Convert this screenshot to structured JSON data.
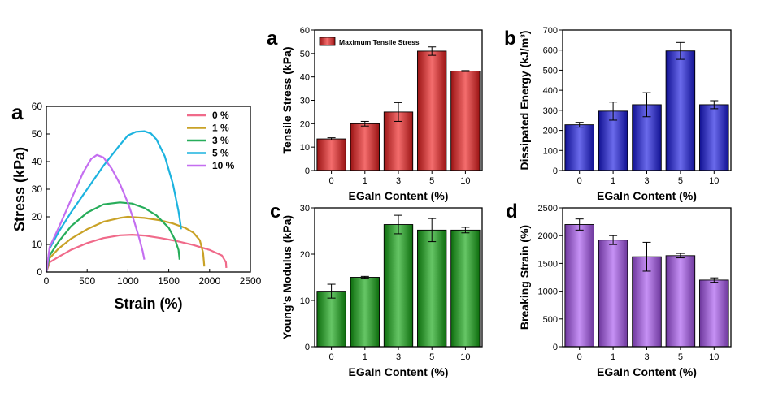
{
  "chart_data": [
    {
      "id": "stress_strain",
      "type": "line",
      "panel_label": "a",
      "xlabel": "Strain (%)",
      "ylabel": "Stress (kPa)",
      "xlim": [
        0,
        2500
      ],
      "ylim": [
        0,
        60
      ],
      "xticks": [
        0,
        500,
        1000,
        1500,
        2000,
        2500
      ],
      "yticks": [
        0,
        10,
        20,
        30,
        40,
        50,
        60
      ],
      "legend_position": "top-right",
      "series": [
        {
          "name": "0 %",
          "color": "#f06a8a",
          "x": [
            0,
            40,
            150,
            300,
            500,
            700,
            900,
            1050,
            1200,
            1400,
            1600,
            1800,
            2000,
            2150,
            2200,
            2205
          ],
          "y": [
            0,
            3.5,
            5.5,
            8,
            10.5,
            12.3,
            13.3,
            13.5,
            13.2,
            12.3,
            11.2,
            9.8,
            8,
            6,
            3.5,
            1.5
          ]
        },
        {
          "name": "1 %",
          "color": "#c9a227",
          "x": [
            0,
            40,
            150,
            300,
            500,
            700,
            900,
            1000,
            1200,
            1400,
            1550,
            1700,
            1800,
            1880,
            1920,
            1935
          ],
          "y": [
            0,
            5,
            8.5,
            12,
            15.5,
            18.2,
            19.6,
            20,
            19.6,
            18.7,
            17.6,
            16,
            14.3,
            11.5,
            7,
            2
          ]
        },
        {
          "name": "3 %",
          "color": "#27ad5a",
          "x": [
            0,
            40,
            150,
            300,
            500,
            700,
            900,
            1050,
            1200,
            1350,
            1500,
            1580,
            1620,
            1632
          ],
          "y": [
            0,
            6,
            11,
            16.5,
            21.5,
            24.5,
            25.2,
            24.8,
            23.2,
            20.5,
            16,
            11.5,
            8,
            4.5
          ]
        },
        {
          "name": "5 %",
          "color": "#1cb3df",
          "x": [
            0,
            40,
            150,
            300,
            500,
            700,
            900,
            1000,
            1100,
            1200,
            1280,
            1350,
            1450,
            1550,
            1620,
            1645,
            1650
          ],
          "y": [
            0,
            8.5,
            14.5,
            21.5,
            30,
            38.5,
            46,
            49.5,
            50.8,
            51,
            50.2,
            48,
            42,
            32,
            22,
            17,
            15.5
          ]
        },
        {
          "name": "10 %",
          "color": "#c46ef0",
          "x": [
            0,
            40,
            150,
            300,
            450,
            550,
            620,
            700,
            800,
            900,
            1000,
            1080,
            1140,
            1180,
            1200
          ],
          "y": [
            0,
            9,
            16,
            26,
            36,
            41,
            42.4,
            41.5,
            37.5,
            32,
            25,
            18,
            12,
            7.5,
            4.5
          ]
        }
      ]
    },
    {
      "id": "tensile_stress",
      "type": "bar",
      "panel_label": "a",
      "xlabel": "EGaIn Content (%)",
      "ylabel": "Tensile Stress (kPa)",
      "legend_label": "Maximum Tensile Stress",
      "legend_position": "top-left",
      "color": "#ee1e1e",
      "categories": [
        "0",
        "1",
        "3",
        "5",
        "10"
      ],
      "values": [
        13.5,
        20,
        25,
        51,
        42.5
      ],
      "errors": [
        0.5,
        1,
        4,
        1.8,
        0.2
      ],
      "ylim": [
        0,
        60
      ],
      "yticks": [
        0,
        10,
        20,
        30,
        40,
        50,
        60
      ]
    },
    {
      "id": "dissipated_energy",
      "type": "bar",
      "panel_label": "b",
      "xlabel": "EGaIn Content (%)",
      "ylabel": "Dissipated Energy (kJ/m³)",
      "color": "#1a1ae0",
      "categories": [
        "0",
        "1",
        "3",
        "5",
        "10"
      ],
      "values": [
        228,
        296,
        328,
        596,
        328
      ],
      "errors": [
        12,
        45,
        60,
        42,
        20
      ],
      "ylim": [
        0,
        700
      ],
      "yticks": [
        0,
        100,
        200,
        300,
        400,
        500,
        600,
        700
      ]
    },
    {
      "id": "youngs_modulus",
      "type": "bar",
      "panel_label": "c",
      "xlabel": "EGaIn Content (%)",
      "ylabel": "Young's Modulus (kPa)",
      "color": "#14a814",
      "categories": [
        "0",
        "1",
        "3",
        "5",
        "10"
      ],
      "values": [
        12,
        15,
        26.4,
        25.2,
        25.2
      ],
      "errors": [
        1.5,
        0.2,
        2,
        2.5,
        0.6
      ],
      "ylim": [
        0,
        30
      ],
      "yticks": [
        0,
        10,
        20,
        30
      ]
    },
    {
      "id": "breaking_strain",
      "type": "bar",
      "panel_label": "d",
      "xlabel": "EGaIn Content (%)",
      "ylabel": "Breaking Strain (%)",
      "color": "#a855f0",
      "categories": [
        "0",
        "1",
        "3",
        "5",
        "10"
      ],
      "values": [
        2200,
        1920,
        1620,
        1640,
        1200
      ],
      "errors": [
        100,
        80,
        260,
        40,
        40
      ],
      "ylim": [
        0,
        2500
      ],
      "yticks": [
        0,
        500,
        1000,
        1500,
        2000,
        2500
      ]
    }
  ]
}
